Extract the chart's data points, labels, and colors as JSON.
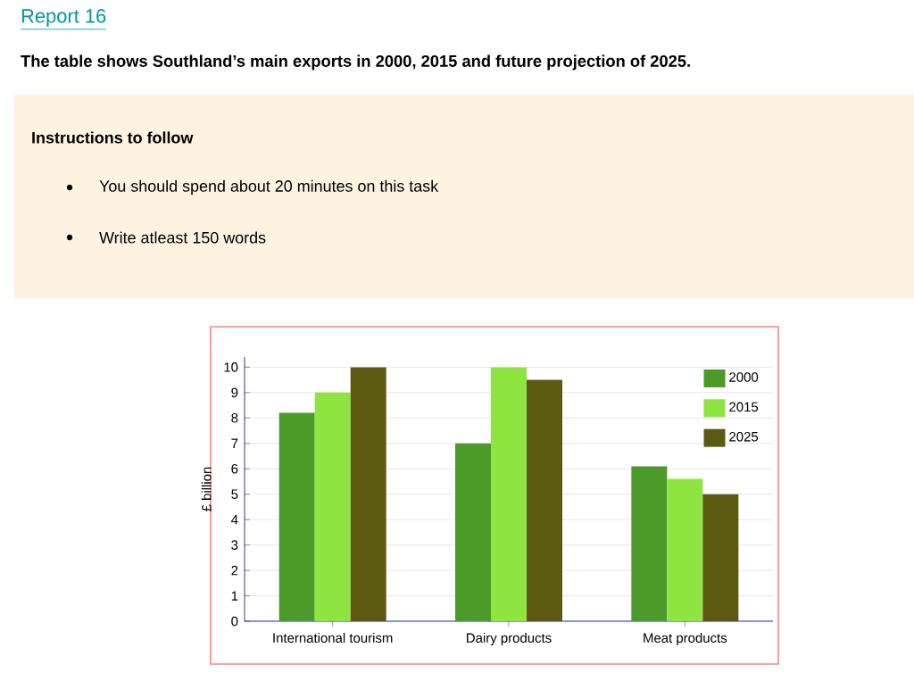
{
  "chart_data": {
    "type": "bar",
    "title": "Report 16",
    "subtitle": "The table shows Southland’s main exports in 2000, 2015 and future projection of 2025.",
    "annotations": [
      "Instructions to follow",
      "You should spend about 20 minutes on this task",
      "Write atleast 150 words"
    ],
    "categories": [
      "International tourism",
      "Dairy products",
      "Meat products"
    ],
    "series": [
      {
        "name": "2000",
        "color": "#4c9a2a",
        "values": [
          8.2,
          7,
          6.1
        ]
      },
      {
        "name": "2015",
        "color": "#8ee53f",
        "values": [
          9,
          10,
          5.6
        ]
      },
      {
        "name": "2025",
        "color": "#5c5a12",
        "values": [
          10,
          9.5,
          5
        ]
      }
    ],
    "ylabel": "£ billion",
    "ylim": [
      0,
      10.4
    ],
    "yticks": [
      0,
      1,
      2,
      3,
      4,
      5,
      6,
      7,
      8,
      9,
      10
    ],
    "grid": "y",
    "legend": "top right"
  }
}
